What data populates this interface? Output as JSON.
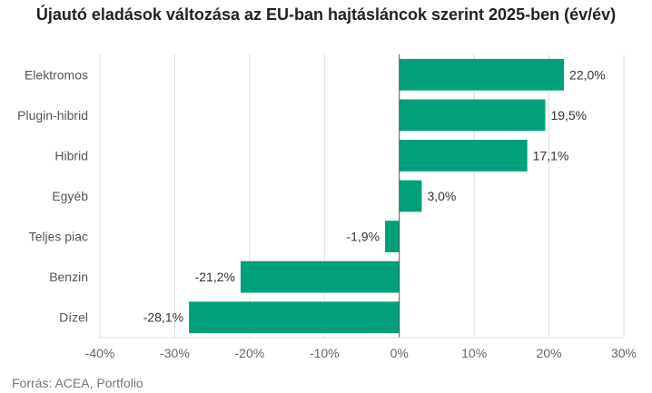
{
  "title": "Újautó eladások változása az EU-ban hajtásláncok szerint 2025-ben (év/év)",
  "source": "Forrás: ACEA, Portfolio",
  "colors": {
    "bar": "#00a07a",
    "grid": "#dcdcdc",
    "axis": "#555555",
    "text": "#333333"
  },
  "chart_data": {
    "type": "bar",
    "orientation": "horizontal",
    "title": "Újautó eladások változása az EU-ban hajtásláncok szerint 2025-ben (év/év)",
    "categories": [
      "Elektromos",
      "Plugin-hibrid",
      "Hibrid",
      "Egyéb",
      "Teljes piac",
      "Benzin",
      "Dízel"
    ],
    "values": [
      22.0,
      19.5,
      17.1,
      3.0,
      -1.9,
      -21.2,
      -28.1
    ],
    "value_labels": [
      "22,0%",
      "19,5%",
      "17,1%",
      "3,0%",
      "-1,9%",
      "-21,2%",
      "-28,1%"
    ],
    "xlim": [
      -40,
      30
    ],
    "xticks": [
      -40,
      -30,
      -20,
      -10,
      0,
      10,
      20,
      30
    ],
    "xtick_labels": [
      "-40%",
      "-30%",
      "-20%",
      "-10%",
      "0%",
      "10%",
      "20%",
      "30%"
    ],
    "grid": true
  }
}
